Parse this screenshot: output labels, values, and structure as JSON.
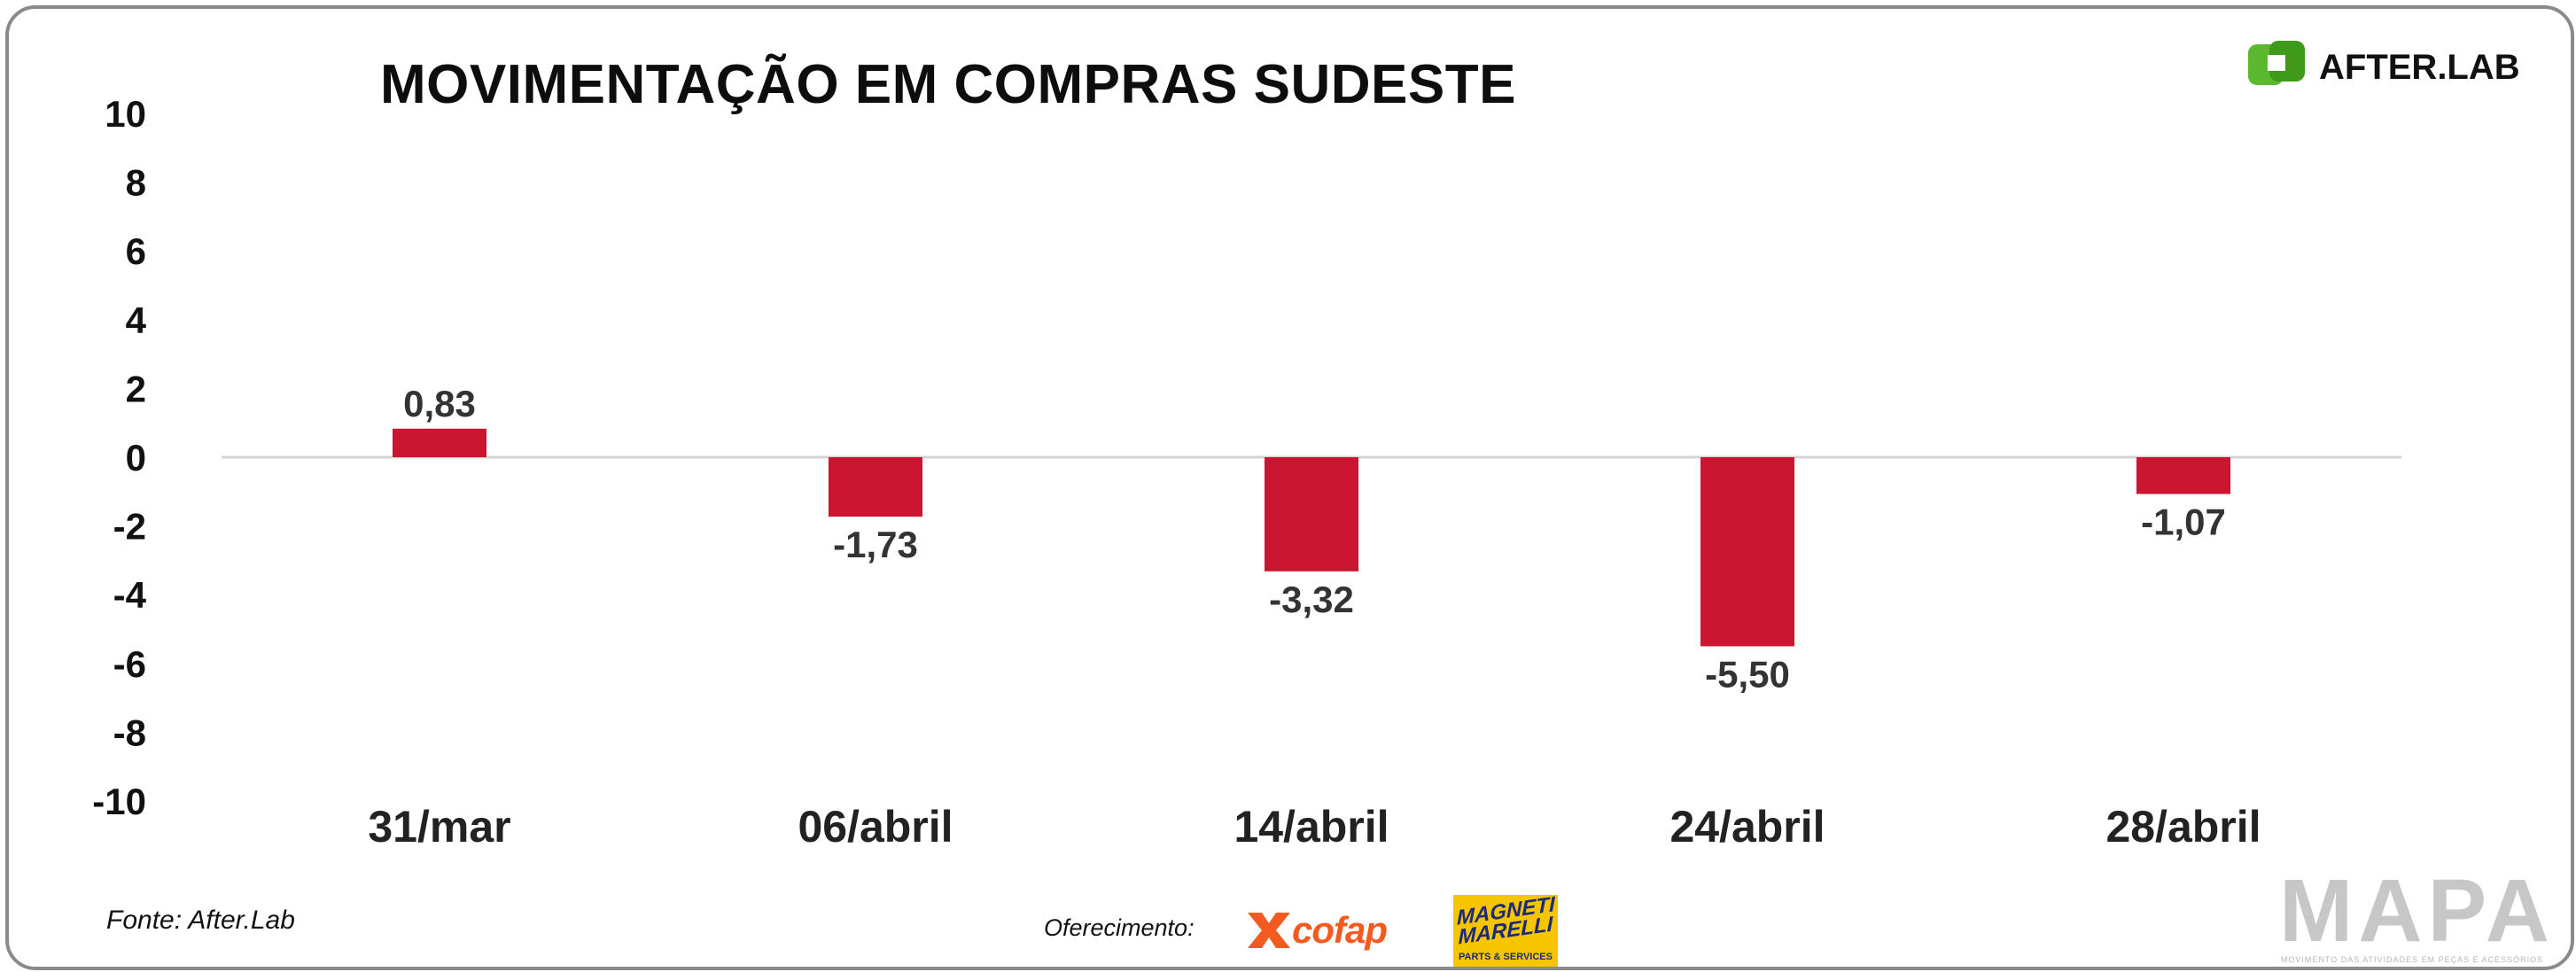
{
  "chart_data": {
    "type": "bar",
    "title": "MOVIMENTAÇÃO EM COMPRAS SUDESTE",
    "categories": [
      "31/mar",
      "06/abril",
      "14/abril",
      "24/abril",
      "28/abril"
    ],
    "values": [
      0.83,
      -1.73,
      -3.32,
      -5.5,
      -1.07
    ],
    "data_labels": [
      "0,83",
      "-1,73",
      "-3,32",
      "-5,50",
      "-1,07"
    ],
    "ylim": [
      -10,
      10
    ],
    "yticks": [
      10,
      8,
      6,
      4,
      2,
      0,
      -2,
      -4,
      -6,
      -8,
      -10
    ],
    "ytick_labels": [
      "10",
      "8",
      "6",
      "4",
      "2",
      "0",
      "-2",
      "-4",
      "-6",
      "-8",
      "-10"
    ],
    "xlabel": "",
    "ylabel": "",
    "grid": false,
    "legend": "none",
    "bar_color": "#cc1531",
    "zero_line_color": "#d4d4d4"
  },
  "branding": {
    "afterlab_text": "AFTER.LAB",
    "afterlab_icon": "afterlab-logo-icon",
    "afterlab_color": "#5cb82e",
    "mapa_text": "MAPA",
    "mapa_tagline": "MOVIMENTO DAS ATIVIDADES EM PEÇAS E ACESSÓRIOS",
    "cofap_text": "cofap",
    "cofap_color": "#f25a1f",
    "marelli_brand": "MAGNETI\nMARELLI",
    "marelli_tag": "PARTS & SERVICES",
    "marelli_color": "#f7c400"
  },
  "footer": {
    "source": "Fonte: After.Lab",
    "sponsor_label": "Oferecimento:"
  }
}
